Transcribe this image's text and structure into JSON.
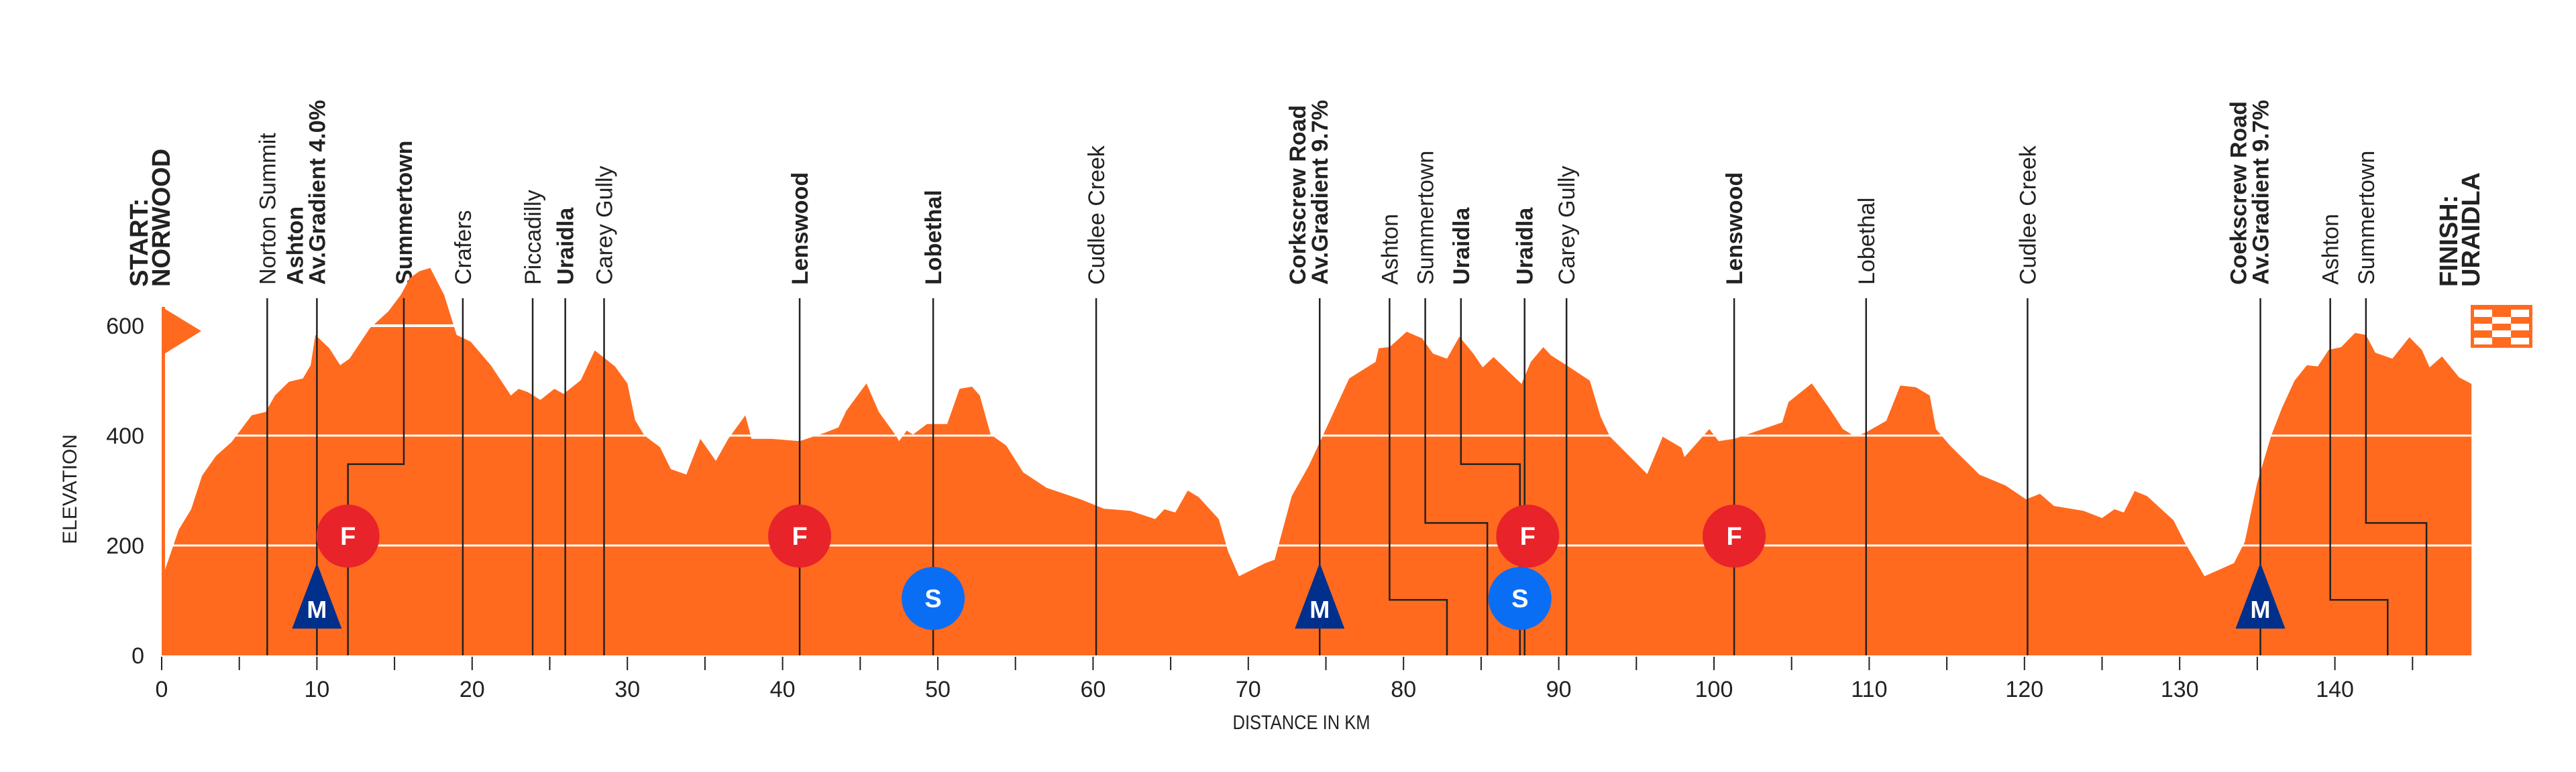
{
  "chart_data": {
    "type": "area",
    "title": "",
    "xlabel": "DISTANCE IN KM",
    "ylabel": "ELEVATION",
    "xlim": [
      0,
      148.8
    ],
    "ylim": [
      0,
      700
    ],
    "x_ticks": [
      0,
      10,
      20,
      30,
      40,
      50,
      60,
      70,
      80,
      90,
      100,
      110,
      120,
      130,
      140
    ],
    "x_minor_ticks": [
      5,
      15,
      25,
      35,
      45,
      55,
      65,
      75,
      85,
      95,
      105,
      115,
      125,
      135,
      145
    ],
    "y_ticks": [
      0,
      200,
      400,
      600
    ],
    "grid": "horizontal at 200, 400, 600",
    "fill_color": "#FF6A1F",
    "series": [
      {
        "name": "Elevation profile",
        "points": [
          [
            0.0,
            138
          ],
          [
            1.1,
            229
          ],
          [
            1.9,
            266
          ],
          [
            2.6,
            327
          ],
          [
            3.5,
            363
          ],
          [
            4.5,
            388
          ],
          [
            5.8,
            437
          ],
          [
            6.7,
            443
          ],
          [
            7.3,
            473
          ],
          [
            8.2,
            498
          ],
          [
            9.1,
            504
          ],
          [
            9.6,
            528
          ],
          [
            9.9,
            583
          ],
          [
            10.8,
            559
          ],
          [
            11.5,
            528
          ],
          [
            12.1,
            540
          ],
          [
            13.4,
            595
          ],
          [
            14.6,
            626
          ],
          [
            15.4,
            656
          ],
          [
            16.0,
            687
          ],
          [
            16.6,
            699
          ],
          [
            17.3,
            705
          ],
          [
            18.2,
            656
          ],
          [
            19.0,
            583
          ],
          [
            19.9,
            571
          ],
          [
            21.2,
            528
          ],
          [
            22.5,
            473
          ],
          [
            23.0,
            485
          ],
          [
            23.6,
            479
          ],
          [
            24.4,
            465
          ],
          [
            25.3,
            485
          ],
          [
            25.9,
            476
          ],
          [
            27.0,
            501
          ],
          [
            27.9,
            555
          ],
          [
            29.2,
            526
          ],
          [
            30.0,
            495
          ],
          [
            30.5,
            428
          ],
          [
            31.1,
            400
          ],
          [
            32.1,
            379
          ],
          [
            32.8,
            339
          ],
          [
            33.8,
            329
          ],
          [
            34.7,
            394
          ],
          [
            35.7,
            354
          ],
          [
            36.5,
            394
          ],
          [
            37.6,
            437
          ],
          [
            38.0,
            394
          ],
          [
            39.3,
            394
          ],
          [
            41.1,
            390
          ],
          [
            42.8,
            406
          ],
          [
            43.6,
            415
          ],
          [
            44.1,
            445
          ],
          [
            45.4,
            495
          ],
          [
            46.2,
            443
          ],
          [
            47.3,
            400
          ],
          [
            47.5,
            390
          ],
          [
            48.0,
            409
          ],
          [
            48.4,
            402
          ],
          [
            49.3,
            421
          ],
          [
            50.6,
            421
          ],
          [
            51.4,
            485
          ],
          [
            52.2,
            489
          ],
          [
            52.7,
            473
          ],
          [
            53.4,
            402
          ],
          [
            54.4,
            382
          ],
          [
            55.5,
            333
          ],
          [
            57.0,
            305
          ],
          [
            59.2,
            284
          ],
          [
            60.7,
            267
          ],
          [
            62.4,
            263
          ],
          [
            64.0,
            248
          ],
          [
            64.6,
            266
          ],
          [
            65.3,
            260
          ],
          [
            66.1,
            300
          ],
          [
            66.8,
            288
          ],
          [
            68.1,
            248
          ],
          [
            68.7,
            189
          ],
          [
            69.4,
            144
          ],
          [
            71.1,
            168
          ],
          [
            71.7,
            174
          ],
          [
            72.8,
            290
          ],
          [
            73.9,
            345
          ],
          [
            75.2,
            424
          ],
          [
            76.5,
            504
          ],
          [
            78.2,
            534
          ],
          [
            78.4,
            559
          ],
          [
            79.1,
            561
          ],
          [
            80.2,
            589
          ],
          [
            81.2,
            577
          ],
          [
            81.9,
            549
          ],
          [
            82.8,
            540
          ],
          [
            83.6,
            580
          ],
          [
            84.5,
            549
          ],
          [
            85.1,
            524
          ],
          [
            85.8,
            543
          ],
          [
            87.6,
            494
          ],
          [
            88.2,
            534
          ],
          [
            89.0,
            561
          ],
          [
            89.5,
            546
          ],
          [
            90.5,
            528
          ],
          [
            92.0,
            500
          ],
          [
            92.7,
            434
          ],
          [
            93.3,
            398
          ],
          [
            95.7,
            330
          ],
          [
            96.7,
            398
          ],
          [
            97.9,
            378
          ],
          [
            98.1,
            361
          ],
          [
            99.7,
            412
          ],
          [
            100.3,
            390
          ],
          [
            101.3,
            394
          ],
          [
            104.4,
            424
          ],
          [
            104.8,
            461
          ],
          [
            106.3,
            495
          ],
          [
            107.4,
            451
          ],
          [
            108.3,
            412
          ],
          [
            109.1,
            398
          ],
          [
            109.8,
            406
          ],
          [
            111.1,
            427
          ],
          [
            112.0,
            491
          ],
          [
            113.0,
            488
          ],
          [
            113.9,
            473
          ],
          [
            114.3,
            412
          ],
          [
            115.2,
            382
          ],
          [
            117.1,
            329
          ],
          [
            118.8,
            309
          ],
          [
            120.1,
            284
          ],
          [
            121.0,
            294
          ],
          [
            121.9,
            272
          ],
          [
            123.8,
            263
          ],
          [
            125.0,
            250
          ],
          [
            125.8,
            266
          ],
          [
            126.4,
            260
          ],
          [
            127.1,
            299
          ],
          [
            127.9,
            290
          ],
          [
            129.6,
            246
          ],
          [
            130.3,
            207
          ],
          [
            131.6,
            144
          ],
          [
            133.5,
            168
          ],
          [
            134.2,
            207
          ],
          [
            135.0,
            315
          ],
          [
            135.9,
            400
          ],
          [
            136.6,
            451
          ],
          [
            137.4,
            500
          ],
          [
            138.2,
            528
          ],
          [
            138.9,
            526
          ],
          [
            139.6,
            556
          ],
          [
            140.4,
            561
          ],
          [
            141.3,
            587
          ],
          [
            142.0,
            583
          ],
          [
            142.6,
            551
          ],
          [
            143.7,
            540
          ],
          [
            144.8,
            579
          ],
          [
            145.6,
            556
          ],
          [
            146.1,
            524
          ],
          [
            146.9,
            544
          ],
          [
            148.0,
            506
          ],
          [
            148.8,
            494
          ]
        ]
      }
    ],
    "waypoints": [
      {
        "km": 0.0,
        "lines": [
          "START:",
          "NORWOOD"
        ],
        "bold": [
          true,
          true
        ],
        "line": false
      },
      {
        "km": 6.8,
        "lines": [
          "Norton Summit"
        ],
        "bold": [
          false
        ],
        "line": true
      },
      {
        "km": 10.0,
        "lines": [
          "Ashton",
          "Av.Gradient 4.0%"
        ],
        "bold": [
          true,
          true
        ],
        "line": true
      },
      {
        "km": 15.6,
        "lines": [
          "Summertown"
        ],
        "bold": [
          true
        ],
        "line": true,
        "step_to_km": 12.0,
        "step_elev": 348
      },
      {
        "km": 19.4,
        "lines": [
          "Crafers"
        ],
        "bold": [
          false
        ],
        "line": true
      },
      {
        "km": 23.9,
        "lines": [
          "Piccadilly"
        ],
        "bold": [
          false
        ],
        "line": true
      },
      {
        "km": 26.0,
        "lines": [
          "Uraidla"
        ],
        "bold": [
          true
        ],
        "line": true
      },
      {
        "km": 28.5,
        "lines": [
          "Carey Gully"
        ],
        "bold": [
          false
        ],
        "line": true
      },
      {
        "km": 41.1,
        "lines": [
          "Lenswood"
        ],
        "bold": [
          true
        ],
        "line": true
      },
      {
        "km": 49.7,
        "lines": [
          "Lobethal"
        ],
        "bold": [
          true
        ],
        "line": true
      },
      {
        "km": 60.2,
        "lines": [
          "Cudlee Creek"
        ],
        "bold": [
          false
        ],
        "line": true
      },
      {
        "km": 74.6,
        "lines": [
          "Corkscrew Road",
          "Av.Gradient 9.7%"
        ],
        "bold": [
          true,
          true
        ],
        "line": true
      },
      {
        "km": 79.1,
        "lines": [
          "Ashton"
        ],
        "bold": [
          false
        ],
        "line": true,
        "step_to_km": 82.8,
        "step_elev": 101
      },
      {
        "km": 81.4,
        "lines": [
          "Summertown"
        ],
        "bold": [
          false
        ],
        "line": true,
        "step_to_km": 85.4,
        "step_elev": 241
      },
      {
        "km": 83.7,
        "lines": [
          "Uraidla"
        ],
        "bold": [
          true
        ],
        "line": true,
        "step_to_km": 87.5,
        "step_elev": 348
      },
      {
        "km": 87.8,
        "lines": [
          "Uraidla"
        ],
        "bold": [
          true
        ],
        "line": true
      },
      {
        "km": 90.5,
        "lines": [
          "Carey Gully"
        ],
        "bold": [
          false
        ],
        "line": true
      },
      {
        "km": 101.3,
        "lines": [
          "Lenswood"
        ],
        "bold": [
          true
        ],
        "line": true
      },
      {
        "km": 109.8,
        "lines": [
          "Lobethal"
        ],
        "bold": [
          false
        ],
        "line": true
      },
      {
        "km": 120.2,
        "lines": [
          "Cudlee Creek"
        ],
        "bold": [
          false
        ],
        "line": true
      },
      {
        "km": 135.2,
        "lines": [
          "Coekscrew Road",
          "Av.Gradient 9.7%"
        ],
        "bold": [
          true,
          true
        ],
        "line": true
      },
      {
        "km": 139.7,
        "lines": [
          "Ashton"
        ],
        "bold": [
          false
        ],
        "line": true,
        "step_to_km": 143.4,
        "step_elev": 101
      },
      {
        "km": 142.0,
        "lines": [
          "Summertown"
        ],
        "bold": [
          false
        ],
        "line": true,
        "step_to_km": 145.9,
        "step_elev": 241
      },
      {
        "km": 148.8,
        "lines": [
          "FINISH:",
          "URAIDLA"
        ],
        "bold": [
          true,
          true
        ],
        "line": false
      }
    ],
    "markers": [
      {
        "type": "M",
        "label": "M",
        "km": 10.0,
        "color": "#00308C",
        "name": "mountain-climb"
      },
      {
        "type": "F",
        "label": "F",
        "km": 12.0,
        "color": "#E8232A",
        "name": "feed-zone"
      },
      {
        "type": "F",
        "label": "F",
        "km": 41.1,
        "color": "#E8232A",
        "name": "feed-zone"
      },
      {
        "type": "S",
        "label": "S",
        "km": 49.7,
        "color": "#0A6EF5",
        "name": "sprint"
      },
      {
        "type": "M",
        "label": "M",
        "km": 74.6,
        "color": "#00308C",
        "name": "mountain-climb"
      },
      {
        "type": "S",
        "label": "S",
        "km": 87.5,
        "color": "#0A6EF5",
        "name": "sprint"
      },
      {
        "type": "F",
        "label": "F",
        "km": 88.0,
        "color": "#E8232A",
        "name": "feed-zone"
      },
      {
        "type": "F",
        "label": "F",
        "km": 101.3,
        "color": "#E8232A",
        "name": "feed-zone"
      },
      {
        "type": "M",
        "label": "M",
        "km": 135.2,
        "color": "#00308C",
        "name": "mountain-climb"
      }
    ]
  },
  "colors": {
    "profile": "#FF6A1F",
    "text": "#222222",
    "gridline": "#ffffff",
    "background": "#ffffff"
  }
}
